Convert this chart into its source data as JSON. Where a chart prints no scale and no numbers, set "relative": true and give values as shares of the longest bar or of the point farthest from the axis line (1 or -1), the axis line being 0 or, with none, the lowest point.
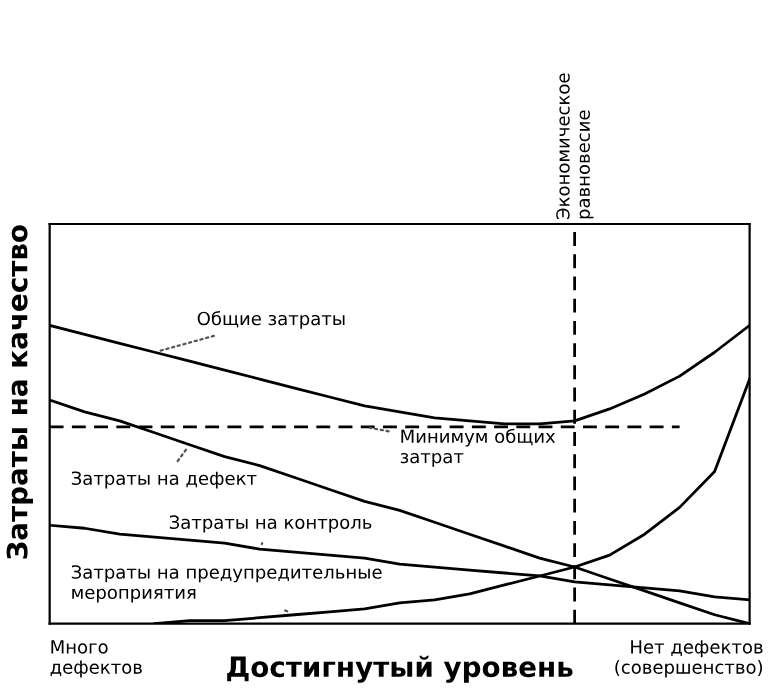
{
  "chart_data": {
    "type": "line",
    "relative": true,
    "xlabel": "Достигнутый уровень",
    "ylabel": "Затраты на качество",
    "legend": false,
    "grid": false,
    "marker": "none",
    "line_style": "solid",
    "categories": [
      null,
      null,
      null,
      null,
      null,
      null,
      null,
      null,
      null,
      null,
      null,
      null,
      null,
      null,
      null,
      null,
      null,
      null,
      null,
      null,
      null
    ],
    "series": [
      {
        "name": "Общие затраты",
        "color": "#000000",
        "values": [
          1.0,
          0.97,
          0.94,
          0.91,
          0.88,
          0.85,
          0.82,
          0.79,
          0.76,
          0.73,
          0.71,
          0.69,
          0.68,
          0.67,
          0.67,
          0.68,
          0.72,
          0.77,
          0.83,
          0.91,
          1.0
        ]
      },
      {
        "name": "Затраты на дефект",
        "color": "#000000",
        "values": [
          0.75,
          0.71,
          0.68,
          0.64,
          0.6,
          0.56,
          0.53,
          0.49,
          0.45,
          0.41,
          0.38,
          0.34,
          0.3,
          0.26,
          0.22,
          0.19,
          0.15,
          0.11,
          0.07,
          0.03,
          0.0
        ]
      },
      {
        "name": "Затраты на контроль",
        "color": "#000000",
        "values": [
          0.33,
          0.32,
          0.3,
          0.29,
          0.28,
          0.27,
          0.25,
          0.24,
          0.23,
          0.22,
          0.2,
          0.19,
          0.18,
          0.17,
          0.16,
          0.14,
          0.13,
          0.12,
          0.11,
          0.09,
          0.08
        ]
      },
      {
        "name": "Затраты на предупредительные\nмероприятия",
        "color": "#000000",
        "values": [
          null,
          null,
          null,
          0.0,
          0.01,
          0.01,
          0.02,
          0.03,
          0.04,
          0.05,
          0.07,
          0.08,
          0.1,
          0.13,
          0.16,
          0.19,
          0.23,
          0.3,
          0.39,
          0.51,
          0.82
        ]
      }
    ],
    "ref_lines": [
      {
        "axis": "y",
        "value": 0.66,
        "label": "Минимум общих\nзатрат",
        "color": "#000000",
        "line_style": "dashed"
      }
    ],
    "annotations": [
      "Много\nдефектов",
      "Нет дефектов\n(совершенство)",
      "Экономическое\nравновесие"
    ]
  }
}
